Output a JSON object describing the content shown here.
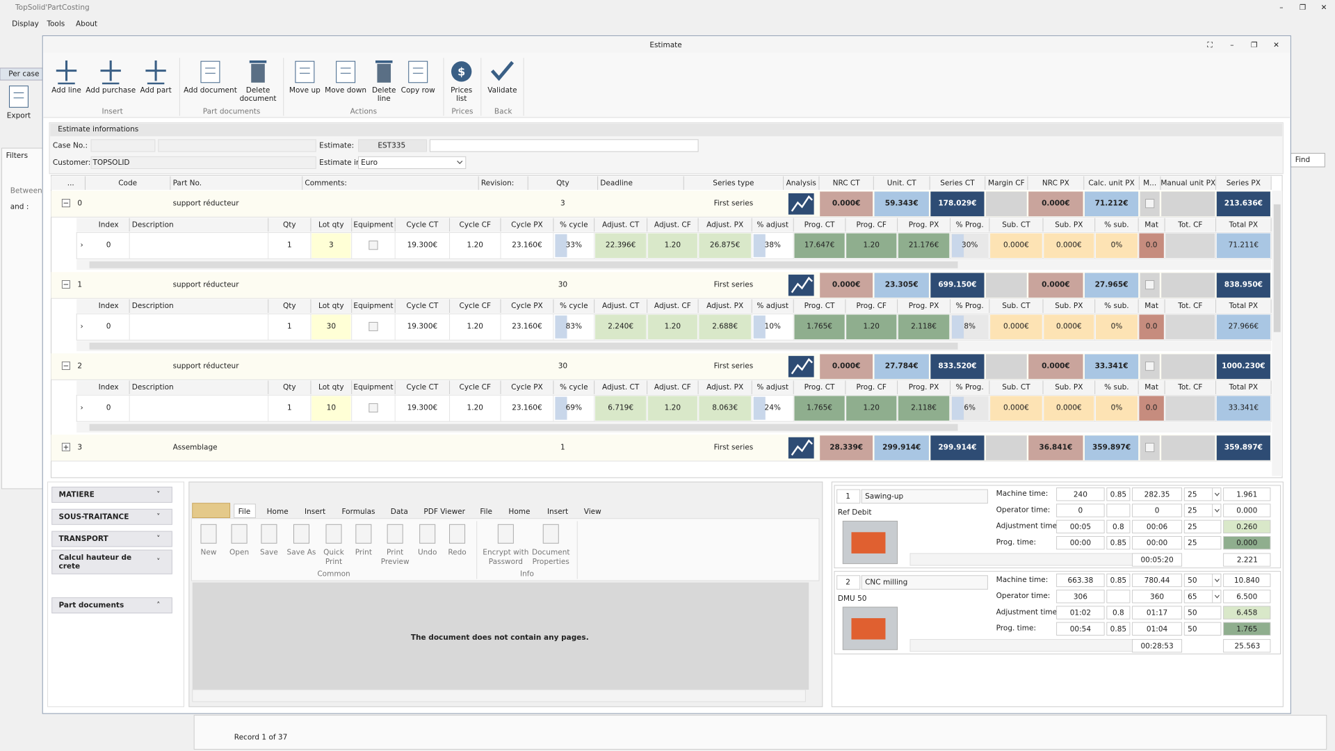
{
  "app": {
    "title": "TopSolid'PartCosting",
    "menu": [
      "Display",
      "Tools",
      "About"
    ]
  },
  "background": {
    "per_case": "Per case",
    "export": "Export",
    "filters": "Filters",
    "between": "Between",
    "and": "and :",
    "find": "Find",
    "record": "Record 1 of 37"
  },
  "window": {
    "title": "Estimate"
  },
  "ribbon": {
    "groups": [
      {
        "label": "Insert",
        "buttons": [
          [
            "Add line"
          ],
          [
            "Add purchase"
          ],
          [
            "Add part"
          ]
        ]
      },
      {
        "label": "Part documents",
        "buttons": [
          [
            "Add document"
          ],
          [
            "Delete",
            "document"
          ]
        ]
      },
      {
        "label": "Actions",
        "buttons": [
          [
            "Move up"
          ],
          [
            "Move down"
          ],
          [
            "Delete",
            "line"
          ],
          [
            "Copy row"
          ]
        ]
      },
      {
        "label": "Prices",
        "buttons": [
          [
            "Prices",
            "list"
          ]
        ]
      },
      {
        "label": "Back",
        "buttons": [
          [
            "Validate"
          ]
        ]
      }
    ]
  },
  "info": {
    "header": "Estimate informations",
    "case_label": "Case No.:",
    "estimate_label": "Estimate:",
    "estimate": "EST335",
    "customer_label": "Customer:",
    "customer": "TOPSOLID",
    "estimate_in_label": "Estimate in:",
    "estimate_in": "Euro"
  },
  "grid": {
    "columns": [
      "...",
      "Code",
      "Part No.",
      "Comments:",
      "Revision:",
      "Qty",
      "Deadline",
      "Series type",
      "Analysis",
      "NRC CT",
      "Unit. CT",
      "Series CT",
      "Margin CF",
      "NRC PX",
      "Calc. unit PX",
      "M...",
      "Manual unit PX",
      "Series PX"
    ],
    "detail_columns": [
      "Index",
      "Description",
      "Qty",
      "Lot qty",
      "Equipment",
      "Cycle CT",
      "Cycle CF",
      "Cycle PX",
      "% cycle",
      "Adjust. CT",
      "Adjust. CF",
      "Adjust. PX",
      "% adjust",
      "Prog. CT",
      "Prog. CF",
      "Prog. PX",
      "% Prog.",
      "Sub. CT",
      "Sub. PX",
      "% sub.",
      "Mat",
      "Tot. CF",
      "Total PX"
    ],
    "rows": [
      {
        "cells": [
          "0",
          null,
          "support réducteur",
          null,
          null,
          "3",
          null,
          "First series",
          null,
          "0.000€",
          "59.343€",
          "178.029€",
          null,
          "0.000€",
          "71.212€",
          null,
          null,
          "213.636€"
        ],
        "detail": [
          "0",
          null,
          "1",
          "3",
          null,
          "19.300€",
          "1.20",
          "23.160€",
          "33%",
          "22.396€",
          "1.20",
          "26.875€",
          "38%",
          "17.647€",
          "1.20",
          "21.176€",
          "30%",
          "0.000€",
          "0.000€",
          "0%",
          "0.0",
          null,
          "71.211€"
        ]
      },
      {
        "cells": [
          "1",
          null,
          "support réducteur",
          null,
          null,
          "30",
          null,
          "First series",
          null,
          "0.000€",
          "23.305€",
          "699.150€",
          null,
          "0.000€",
          "27.965€",
          null,
          null,
          "838.950€"
        ],
        "detail": [
          "0",
          null,
          "1",
          "30",
          null,
          "19.300€",
          "1.20",
          "23.160€",
          "83%",
          "2.240€",
          "1.20",
          "2.688€",
          "10%",
          "1.765€",
          "1.20",
          "2.118€",
          "8%",
          "0.000€",
          "0.000€",
          "0%",
          "0.0",
          null,
          "27.966€"
        ]
      },
      {
        "cells": [
          "2",
          null,
          "support réducteur",
          null,
          null,
          "30",
          null,
          "First series",
          null,
          "0.000€",
          "27.784€",
          "833.520€",
          null,
          "0.000€",
          "33.341€",
          null,
          null,
          "1000.230€"
        ],
        "detail": [
          "0",
          null,
          "1",
          "10",
          null,
          "19.300€",
          "1.20",
          "23.160€",
          "69%",
          "6.719€",
          "1.20",
          "8.063€",
          "24%",
          "1.765€",
          "1.20",
          "2.118€",
          "6%",
          "0.000€",
          "0.000€",
          "0%",
          "0.0",
          null,
          "33.341€"
        ]
      },
      {
        "cells": [
          "3",
          null,
          "Assemblage",
          null,
          null,
          "1",
          null,
          "First series",
          null,
          "28.339€",
          "299.914€",
          "299.914€",
          null,
          "36.841€",
          "359.897€",
          null,
          null,
          "359.897€"
        ]
      }
    ]
  },
  "left_panel": {
    "items": [
      [
        "MATIERE"
      ],
      [
        "SOUS-TRAITANCE"
      ],
      [
        "TRANSPORT"
      ],
      [
        "Calcul hauteur de",
        "crete"
      ],
      [
        "Part documents"
      ]
    ]
  },
  "doc_viewer": {
    "tabs": [
      "File",
      "Home",
      "Insert",
      "Formulas",
      "Data",
      "PDF Viewer",
      "File",
      "Home",
      "Insert",
      "View"
    ],
    "buttons": [
      [
        "New"
      ],
      [
        "Open"
      ],
      [
        "Save"
      ],
      [
        "Save As"
      ],
      [
        "Quick",
        "Print"
      ],
      [
        "Print"
      ],
      [
        "Print",
        "Preview"
      ],
      [
        "Undo"
      ],
      [
        "Redo"
      ],
      [
        "Encrypt with",
        "Password"
      ],
      [
        "Document",
        "Properties"
      ]
    ],
    "groups": [
      "Common",
      "Info"
    ],
    "message": "The document does not contain any pages."
  },
  "operations": {
    "labels": [
      "Machine time:",
      "Operator time:",
      "Adjustment time:",
      "Prog. time:"
    ],
    "items": [
      {
        "index": "1",
        "name": "Sawing-up",
        "ref": "Ref Debit",
        "rows": [
          [
            "240",
            "0.85",
            "282.35",
            "25",
            "1.961"
          ],
          [
            "0",
            null,
            "0",
            "25",
            "0.000"
          ],
          [
            "00:05",
            "0.8",
            "00:06",
            "25",
            "0.260"
          ],
          [
            "00:00",
            "0.85",
            "00:00",
            "25",
            "0.000"
          ]
        ],
        "total_time": "00:05:20",
        "total": "2.221"
      },
      {
        "index": "2",
        "name": "CNC milling",
        "ref": "DMU 50",
        "rows": [
          [
            "663.38",
            "0.85",
            "780.44",
            "50",
            "10.840"
          ],
          [
            "306",
            null,
            "360",
            "65",
            "6.500"
          ],
          [
            "01:02",
            "0.8",
            "01:17",
            "50",
            "6.458"
          ],
          [
            "00:54",
            "0.85",
            "01:04",
            "50",
            "1.765"
          ]
        ],
        "total_time": "00:28:53",
        "total": "25.563"
      }
    ]
  }
}
